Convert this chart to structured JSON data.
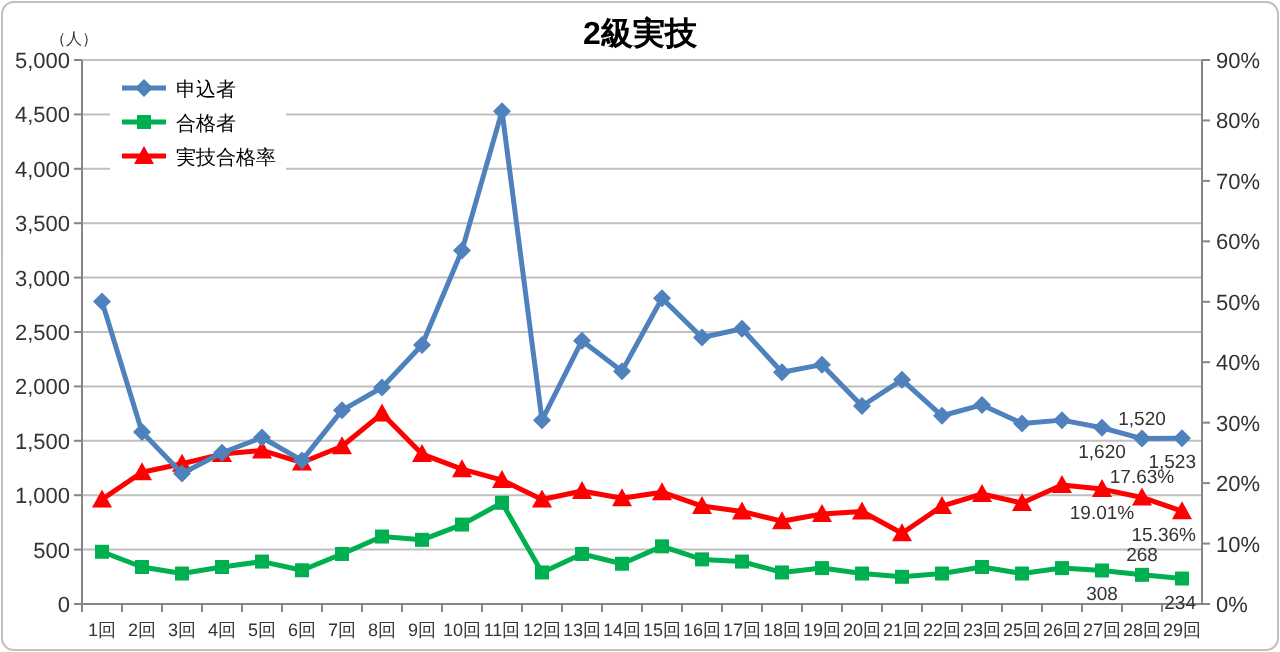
{
  "chart_data": {
    "type": "line",
    "title": "2級実技",
    "annotations": [
      "（人）"
    ],
    "categories": [
      "1回",
      "2回",
      "3回",
      "4回",
      "5回",
      "6回",
      "7回",
      "8回",
      "9回",
      "10回",
      "11回",
      "12回",
      "13回",
      "14回",
      "15回",
      "16回",
      "17回",
      "18回",
      "19回",
      "20回",
      "21回",
      "22回",
      "23回",
      "25回",
      "26回",
      "27回",
      "28回",
      "29回"
    ],
    "series": [
      {
        "name": "申込者",
        "color": "#4f81bd",
        "marker": "diamond",
        "values": [
          2780,
          1580,
          1200,
          1390,
          1530,
          1320,
          1780,
          1990,
          2380,
          3250,
          4530,
          1690,
          2420,
          2140,
          2810,
          2450,
          2530,
          2130,
          2200,
          1820,
          2060,
          1730,
          1830,
          1660,
          1690,
          1620,
          1520,
          1523
        ],
        "value_labels": [
          null,
          null,
          null,
          null,
          null,
          null,
          null,
          null,
          null,
          null,
          null,
          null,
          null,
          null,
          null,
          null,
          null,
          null,
          null,
          null,
          null,
          null,
          null,
          null,
          null,
          "1,620",
          "1,520",
          "1,523"
        ]
      },
      {
        "name": "合格者",
        "color": "#00b050",
        "marker": "square",
        "values": [
          480,
          340,
          280,
          340,
          390,
          310,
          460,
          620,
          590,
          730,
          930,
          290,
          460,
          370,
          530,
          410,
          390,
          290,
          330,
          280,
          250,
          280,
          340,
          280,
          330,
          308,
          268,
          234
        ],
        "value_labels": [
          null,
          null,
          null,
          null,
          null,
          null,
          null,
          null,
          null,
          null,
          null,
          null,
          null,
          null,
          null,
          null,
          null,
          null,
          null,
          null,
          null,
          null,
          null,
          null,
          null,
          "308",
          "268",
          "234"
        ]
      },
      {
        "name": "実技合格率",
        "color": "#ff0000",
        "marker": "triangle",
        "axis": "y2",
        "values": [
          17.3,
          21.8,
          23.2,
          24.8,
          25.4,
          23.4,
          26.1,
          31.5,
          24.8,
          22.3,
          20.5,
          17.3,
          18.7,
          17.5,
          18.5,
          16.2,
          15.3,
          13.7,
          14.9,
          15.3,
          11.7,
          16.2,
          18.2,
          16.7,
          19.7,
          19.01,
          17.63,
          15.36
        ],
        "value_labels": [
          null,
          null,
          null,
          null,
          null,
          null,
          null,
          null,
          null,
          null,
          null,
          null,
          null,
          null,
          null,
          null,
          null,
          null,
          null,
          null,
          null,
          null,
          null,
          null,
          null,
          "19.01%",
          "17.63%",
          "15.36%"
        ]
      }
    ],
    "ylim": [
      0,
      5000
    ],
    "yticks": [
      {
        "value": 0,
        "label": "0"
      },
      {
        "value": 500,
        "label": "500"
      },
      {
        "value": 1000,
        "label": "1,000"
      },
      {
        "value": 1500,
        "label": "1,500"
      },
      {
        "value": 2000,
        "label": "2,000"
      },
      {
        "value": 2500,
        "label": "2,500"
      },
      {
        "value": 3000,
        "label": "3,000"
      },
      {
        "value": 3500,
        "label": "3,500"
      },
      {
        "value": 4000,
        "label": "4,000"
      },
      {
        "value": 4500,
        "label": "4,500"
      },
      {
        "value": 5000,
        "label": "5,000"
      }
    ],
    "y2lim": [
      0,
      90
    ],
    "y2ticks": [
      {
        "value": 0,
        "label": "0%"
      },
      {
        "value": 10,
        "label": "10%"
      },
      {
        "value": 20,
        "label": "20%"
      },
      {
        "value": 30,
        "label": "30%"
      },
      {
        "value": 40,
        "label": "40%"
      },
      {
        "value": 50,
        "label": "50%"
      },
      {
        "value": 60,
        "label": "60%"
      },
      {
        "value": 70,
        "label": "70%"
      },
      {
        "value": 80,
        "label": "80%"
      },
      {
        "value": 90,
        "label": "90%"
      }
    ],
    "grid": "y",
    "legend": "top left",
    "line_style": "solid"
  }
}
